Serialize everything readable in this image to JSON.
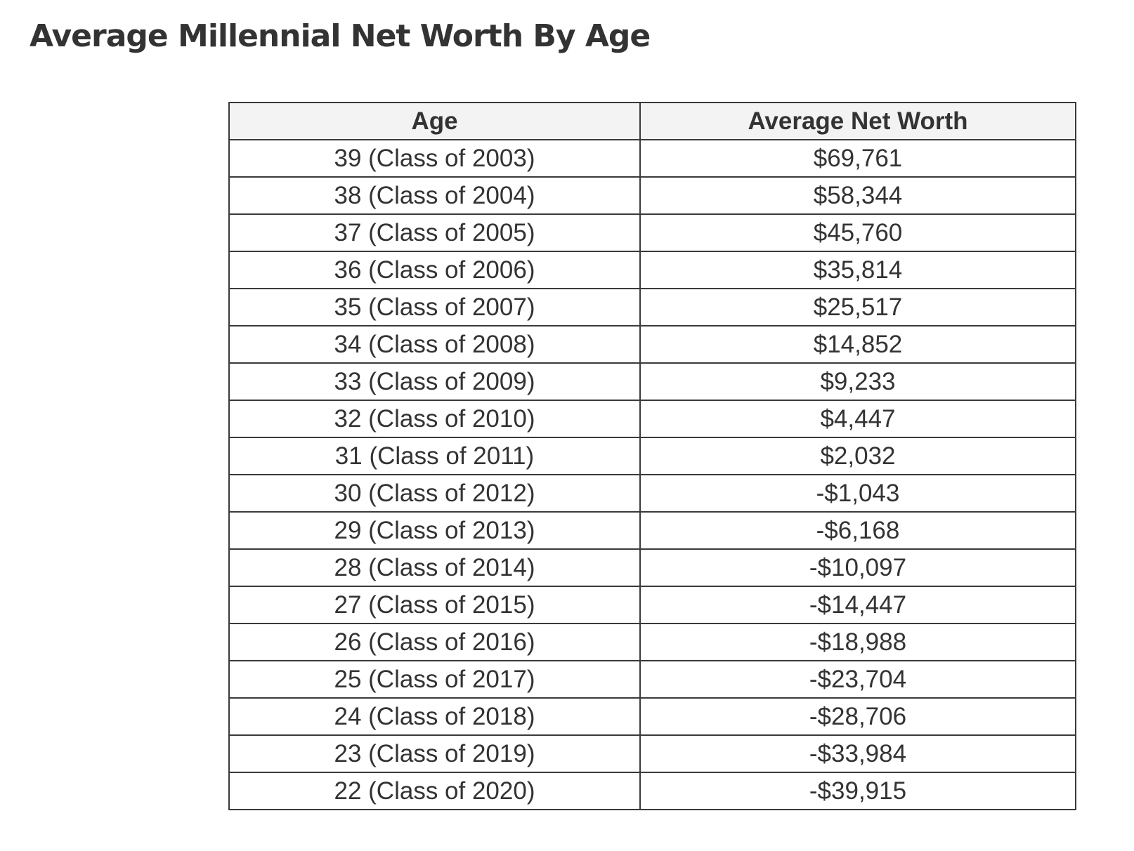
{
  "title": "Average Millennial Net Worth By Age",
  "table": {
    "headers": [
      "Age",
      "Average Net Worth"
    ],
    "rows": [
      [
        "39 (Class of 2003)",
        "$69,761"
      ],
      [
        "38 (Class of 2004)",
        "$58,344"
      ],
      [
        "37 (Class of 2005)",
        "$45,760"
      ],
      [
        "36 (Class of 2006)",
        "$35,814"
      ],
      [
        "35 (Class of 2007)",
        "$25,517"
      ],
      [
        "34 (Class of 2008)",
        "$14,852"
      ],
      [
        "33 (Class of 2009)",
        "$9,233"
      ],
      [
        "32 (Class of 2010)",
        "$4,447"
      ],
      [
        "31 (Class of 2011)",
        "$2,032"
      ],
      [
        "30 (Class of 2012)",
        "-$1,043"
      ],
      [
        "29 (Class of 2013)",
        "-$6,168"
      ],
      [
        "28 (Class of 2014)",
        "-$10,097"
      ],
      [
        "27 (Class of 2015)",
        "-$14,447"
      ],
      [
        "26 (Class of 2016)",
        "-$18,988"
      ],
      [
        "25 (Class of 2017)",
        "-$23,704"
      ],
      [
        "24 (Class of 2018)",
        "-$28,706"
      ],
      [
        "23 (Class of 2019)",
        "-$33,984"
      ],
      [
        "22 (Class of 2020)",
        "-$39,915"
      ]
    ]
  },
  "colors": {
    "text": "#333333",
    "border": "#3a3a3a",
    "header_background": "#f3f3f3",
    "background": "#ffffff"
  }
}
